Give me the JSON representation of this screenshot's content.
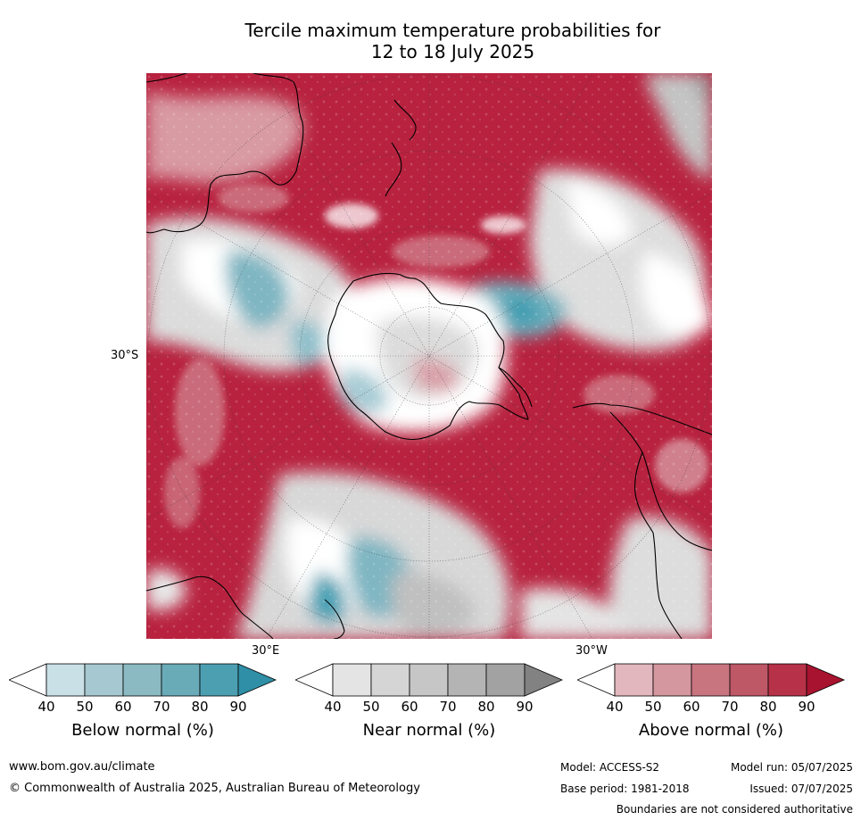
{
  "title_line1": "Tercile maximum temperature probabilities for",
  "title_line2": "12 to 18 July 2025",
  "map": {
    "labels": {
      "lat_30s": "30°S",
      "lon_30e": "30°E",
      "lon_30w": "30°W"
    },
    "colors": {
      "above": "#b31b3a",
      "above_light": "#d9a0a8",
      "near": "#d3d3d3",
      "below": "#5aa8b8",
      "below_light": "#c8dfe5",
      "land_line": "#000000"
    }
  },
  "colorbars": [
    {
      "label": "Below normal (%)",
      "ticks": [
        "40",
        "50",
        "60",
        "70",
        "80",
        "90"
      ],
      "colors": [
        "#ffffff",
        "#c9e0e7",
        "#a6c8d0",
        "#8bbac3",
        "#6aabb8",
        "#4b9fb1",
        "#2f8fa6"
      ]
    },
    {
      "label": "Near normal (%)",
      "ticks": [
        "40",
        "50",
        "60",
        "70",
        "80",
        "90"
      ],
      "colors": [
        "#ffffff",
        "#e4e4e4",
        "#d5d5d5",
        "#c6c6c6",
        "#b4b4b4",
        "#a2a2a2",
        "#828282"
      ]
    },
    {
      "label": "Above normal (%)",
      "ticks": [
        "40",
        "50",
        "60",
        "70",
        "80",
        "90"
      ],
      "colors": [
        "#ffffff",
        "#e2b7bd",
        "#d5979f",
        "#c97580",
        "#be5766",
        "#b73248",
        "#a8132f"
      ]
    }
  ],
  "footer": {
    "website": "www.bom.gov.au/climate",
    "copyright": "© Commonwealth of Australia 2025, Australian Bureau of Meteorology",
    "model": "Model: ACCESS-S2",
    "base_period": "Base period: 1981-2018",
    "model_run": "Model run: 05/07/2025",
    "issued": "Issued: 07/07/2025",
    "boundaries": "Boundaries are not considered authoritative"
  }
}
